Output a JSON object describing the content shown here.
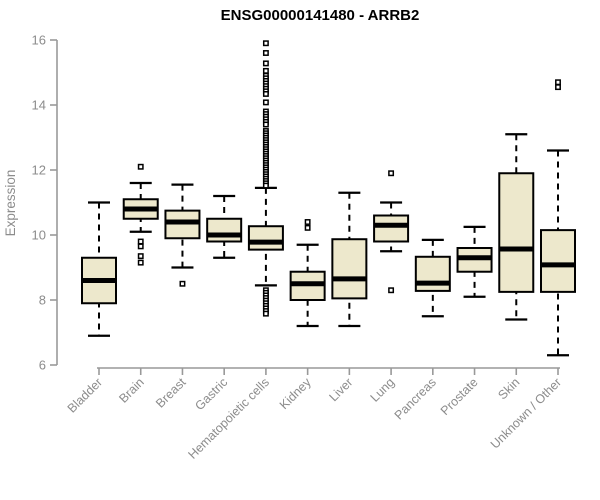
{
  "chart_data": {
    "type": "box",
    "title": "ENSG00000141480 - ARRB2",
    "ylabel": "Expression",
    "xlabel": "",
    "ylim": [
      6,
      16
    ],
    "yticks": [
      6,
      8,
      10,
      12,
      14,
      16
    ],
    "grid": false,
    "legend": "none",
    "categories": [
      "Bladder",
      "Brain",
      "Breast",
      "Gastric",
      "Hematopoietic cells",
      "Kidney",
      "Liver",
      "Lung",
      "Pancreas",
      "Prostate",
      "Skin",
      "Unknown / Other"
    ],
    "series": [
      {
        "category": "Bladder",
        "whisker_low": 6.9,
        "q1": 7.9,
        "median": 8.6,
        "q3": 9.3,
        "whisker_high": 11.0,
        "outliers": []
      },
      {
        "category": "Brain",
        "whisker_low": 10.1,
        "q1": 10.5,
        "median": 10.8,
        "q3": 11.1,
        "whisker_high": 11.6,
        "outliers": [
          12.1,
          9.8,
          9.65,
          9.35,
          9.15
        ]
      },
      {
        "category": "Breast",
        "whisker_low": 9.0,
        "q1": 9.9,
        "median": 10.4,
        "q3": 10.75,
        "whisker_high": 11.55,
        "outliers": [
          8.5
        ]
      },
      {
        "category": "Gastric",
        "whisker_low": 9.3,
        "q1": 9.8,
        "median": 10.0,
        "q3": 10.5,
        "whisker_high": 11.2,
        "outliers": []
      },
      {
        "category": "Hematopoietic cells",
        "whisker_low": 8.45,
        "q1": 9.55,
        "median": 9.78,
        "q3": 10.27,
        "whisker_high": 11.45,
        "outliers": [
          15.9,
          15.6,
          15.28,
          15.05,
          14.9,
          14.82,
          14.74,
          14.66,
          14.58,
          14.5,
          14.42,
          14.34,
          14.08,
          13.8,
          13.72,
          13.64,
          13.56,
          13.48,
          13.4,
          13.2,
          13.13,
          13.06,
          12.99,
          12.92,
          12.85,
          12.78,
          12.71,
          12.64,
          12.57,
          12.5,
          12.43,
          12.36,
          12.29,
          12.22,
          12.15,
          12.08,
          12.01,
          11.94,
          11.87,
          11.8,
          11.73,
          11.66,
          11.59,
          11.52,
          8.3,
          8.22,
          8.14,
          8.06,
          7.98,
          7.9,
          7.82,
          7.74,
          7.66,
          7.58
        ]
      },
      {
        "category": "Kidney",
        "whisker_low": 7.2,
        "q1": 8.0,
        "median": 8.5,
        "q3": 8.87,
        "whisker_high": 9.7,
        "outliers": [
          10.4,
          10.22
        ]
      },
      {
        "category": "Liver",
        "whisker_low": 7.2,
        "q1": 8.05,
        "median": 8.65,
        "q3": 9.87,
        "whisker_high": 11.3,
        "outliers": []
      },
      {
        "category": "Lung",
        "whisker_low": 9.5,
        "q1": 9.8,
        "median": 10.3,
        "q3": 10.6,
        "whisker_high": 11.0,
        "outliers": [
          11.9,
          8.3
        ]
      },
      {
        "category": "Pancreas",
        "whisker_low": 7.5,
        "q1": 8.28,
        "median": 8.52,
        "q3": 9.33,
        "whisker_high": 9.85,
        "outliers": []
      },
      {
        "category": "Prostate",
        "whisker_low": 8.1,
        "q1": 8.87,
        "median": 9.3,
        "q3": 9.6,
        "whisker_high": 10.25,
        "outliers": []
      },
      {
        "category": "Skin",
        "whisker_low": 7.4,
        "q1": 8.25,
        "median": 9.57,
        "q3": 11.9,
        "whisker_high": 13.1,
        "outliers": []
      },
      {
        "category": "Unknown / Other",
        "whisker_low": 6.3,
        "q1": 8.25,
        "median": 9.08,
        "q3": 10.15,
        "whisker_high": 12.6,
        "outliers": [
          14.7,
          14.55
        ]
      }
    ],
    "colors": {
      "box_fill": "#EDE8CC",
      "box_stroke": "#000000",
      "median": "#000000",
      "whisker": "#000000",
      "axis_line": "#999999",
      "axis_text": "#8c8c8c",
      "title_text": "#000000",
      "background": "#ffffff"
    }
  }
}
